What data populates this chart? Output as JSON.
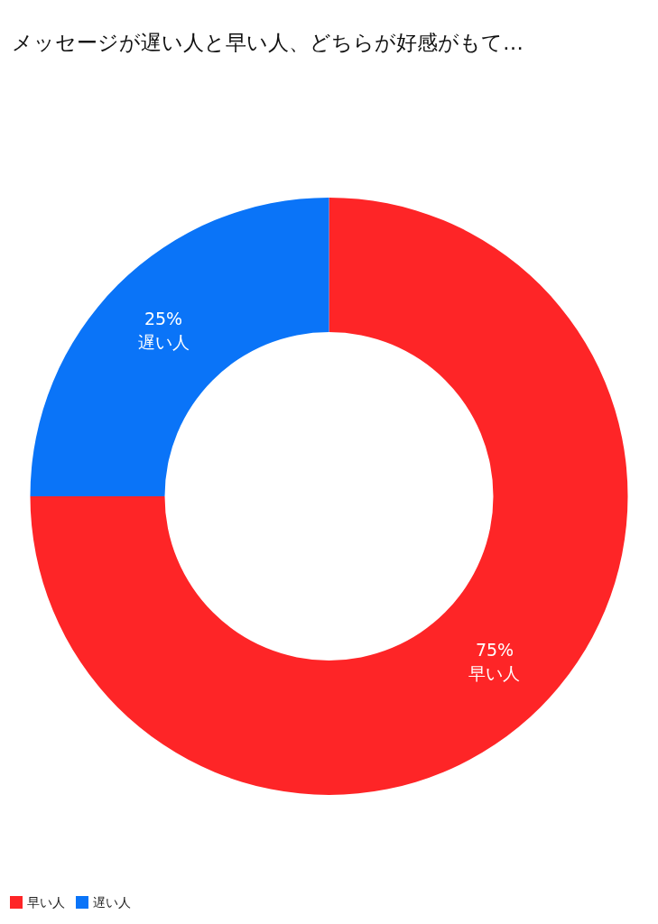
{
  "chart_data": {
    "type": "donut",
    "title": "メッセージが遅い人と早い人、どちらが好感がもて…",
    "categories": [
      "早い人",
      "遅い人"
    ],
    "values": [
      75,
      25
    ],
    "colors": [
      "#fe2527",
      "#0a74f8"
    ],
    "value_labels": [
      "75%",
      "25%"
    ],
    "legend": "bottom left"
  }
}
